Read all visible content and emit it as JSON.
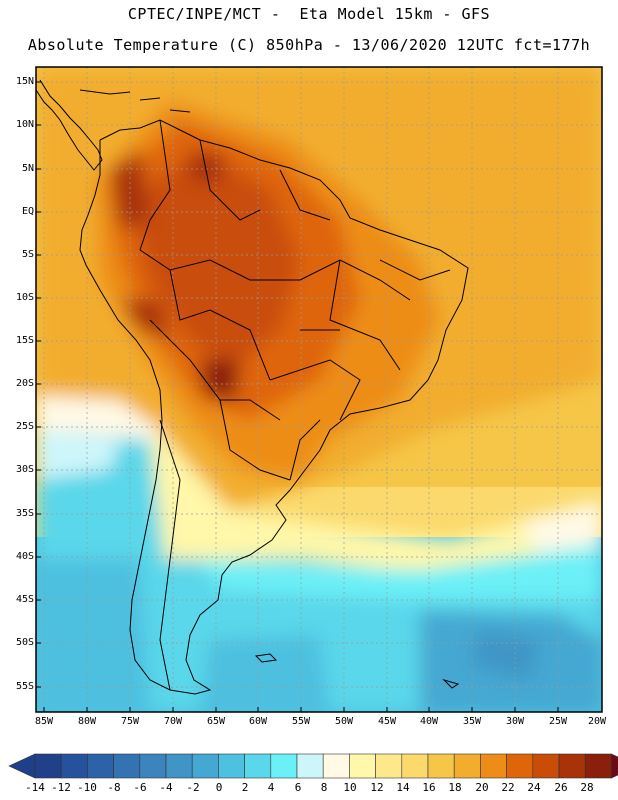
{
  "header": {
    "line1": "CPTEC/INPE/MCT -  Eta Model 15km - GFS",
    "line2": "Absolute Temperature (C) 850hPa - 13/06/2020 12UTC fct=177h"
  },
  "map": {
    "region": "South America",
    "lat_labels": [
      "15N",
      "10N",
      "5N",
      "EQ",
      "5S",
      "10S",
      "15S",
      "20S",
      "25S",
      "30S",
      "35S",
      "40S",
      "45S",
      "50S",
      "55S"
    ],
    "lon_labels": [
      "85W",
      "80W",
      "75W",
      "70W",
      "65W",
      "60W",
      "55W",
      "50W",
      "45W",
      "40W",
      "35W",
      "30W",
      "25W",
      "20W"
    ]
  },
  "colorbar": {
    "unit": "C",
    "labels": [
      "-14",
      "-12",
      "-10",
      "-8",
      "-6",
      "-4",
      "-2",
      "0",
      "2",
      "4",
      "6",
      "8",
      "10",
      "12",
      "14",
      "16",
      "18",
      "20",
      "22",
      "24",
      "26",
      "28"
    ],
    "under_color": "#1f3f8a",
    "over_color": "#6b0b16",
    "colors": [
      "#20418a",
      "#26519c",
      "#2c62a8",
      "#3473b2",
      "#3b84bd",
      "#4095c6",
      "#45a8d2",
      "#4ec0e0",
      "#5ad7ea",
      "#6cf0f7",
      "#cdf6fb",
      "#fff9e6",
      "#fff7a9",
      "#fde98b",
      "#fbd96c",
      "#f6c648",
      "#f2ad2e",
      "#ed8d18",
      "#df650a",
      "#c94d08",
      "#a83308",
      "#8a1f0b"
    ]
  }
}
